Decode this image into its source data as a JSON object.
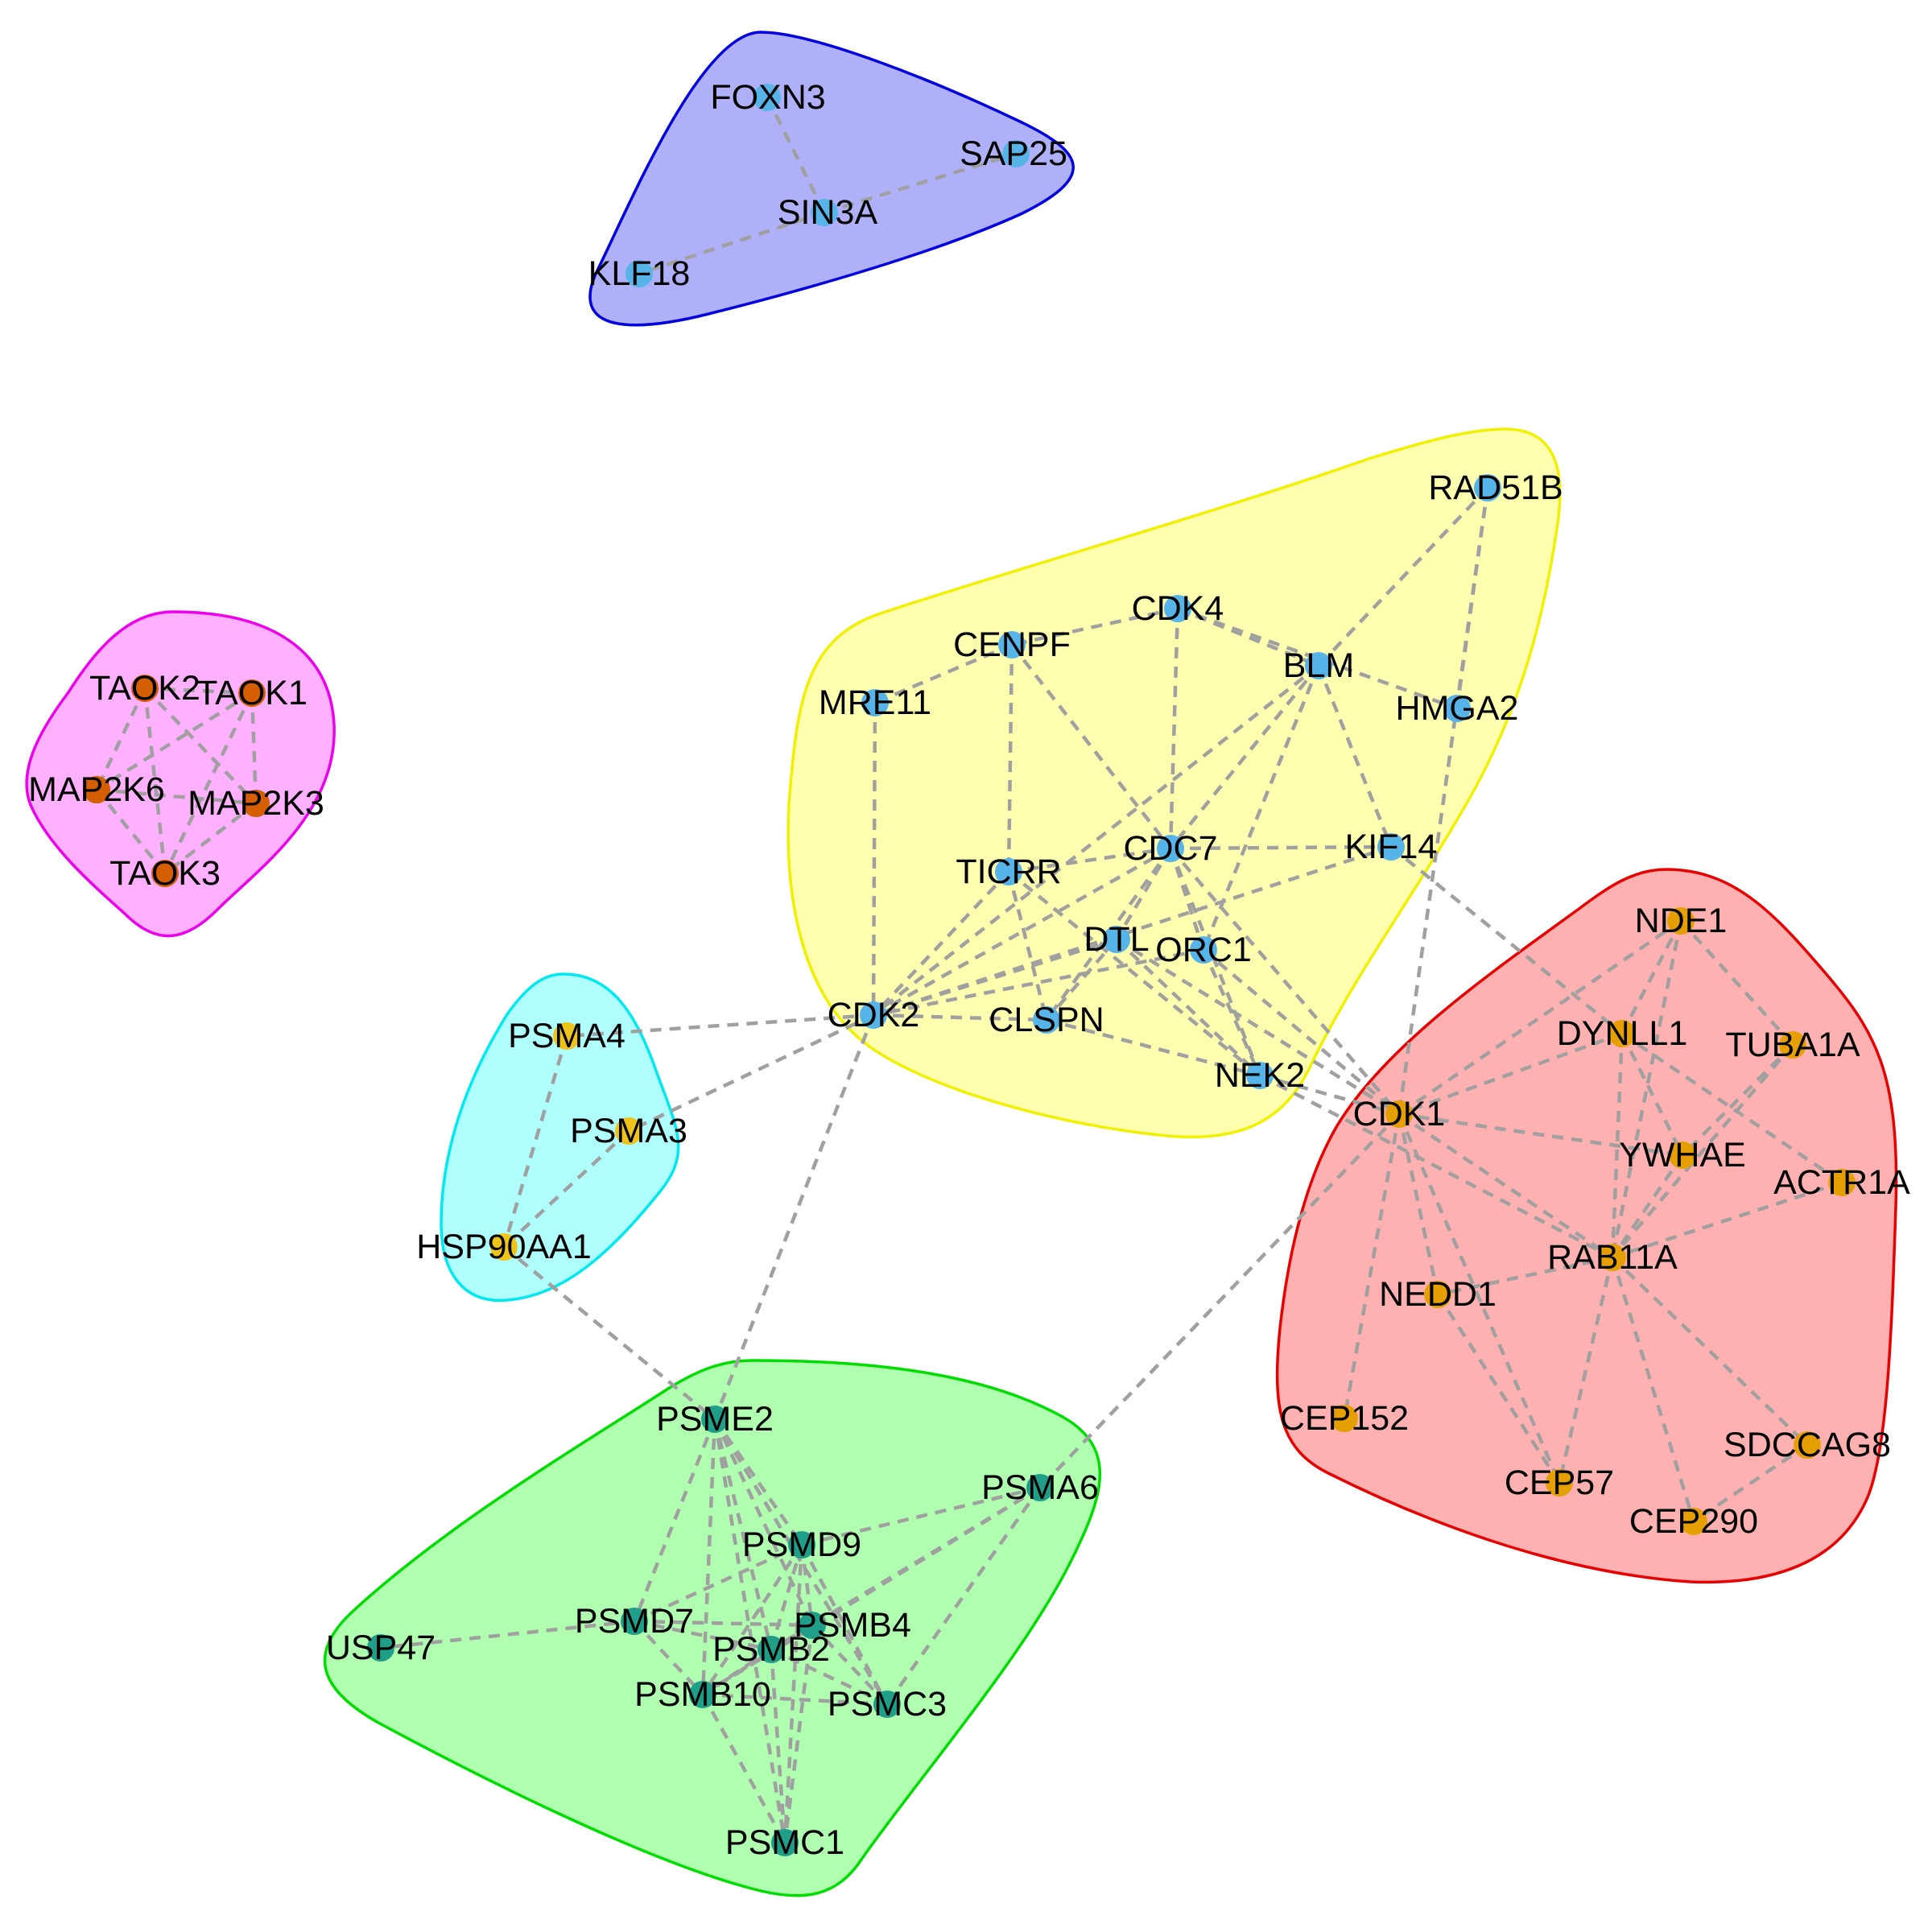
{
  "colors": {
    "edge": "#a0a0a0",
    "node_blue": "#56b4e9",
    "node_orange": "#e69f00",
    "node_gold": "#eec31c",
    "node_teal": "#1f9e89",
    "node_dark_orange": "#d55e00"
  },
  "clusters": [
    {
      "id": "blue",
      "fill": "#b0b0f8",
      "stroke": "#0000e0"
    },
    {
      "id": "magenta",
      "fill": "#ffb0ff",
      "stroke": "#ee00ee"
    },
    {
      "id": "yellow",
      "fill": "#ffffb0",
      "stroke": "#f0f000"
    },
    {
      "id": "cyan",
      "fill": "#b0ffff",
      "stroke": "#00e8f0"
    },
    {
      "id": "red",
      "fill": "#ffb0b0",
      "stroke": "#e80000"
    },
    {
      "id": "green",
      "fill": "#b0ffb0",
      "stroke": "#00dd00"
    }
  ],
  "nodes": [
    {
      "id": "FOXN3",
      "label": "FOXN3",
      "cluster": "blue",
      "color": "#56b4e9"
    },
    {
      "id": "SAP25",
      "label": "SAP25",
      "cluster": "blue",
      "color": "#56b4e9"
    },
    {
      "id": "SIN3A",
      "label": "SIN3A",
      "cluster": "blue",
      "color": "#56b4e9"
    },
    {
      "id": "KLF18",
      "label": "KLF18",
      "cluster": "blue",
      "color": "#56b4e9"
    },
    {
      "id": "TAOK2",
      "label": "TAOK2",
      "cluster": "magenta",
      "color": "#d55e00"
    },
    {
      "id": "TAOK1",
      "label": "TAOK1",
      "cluster": "magenta",
      "color": "#d55e00"
    },
    {
      "id": "MAP2K6",
      "label": "MAP2K6",
      "cluster": "magenta",
      "color": "#d55e00"
    },
    {
      "id": "MAP2K3",
      "label": "MAP2K3",
      "cluster": "magenta",
      "color": "#d55e00"
    },
    {
      "id": "TAOK3",
      "label": "TAOK3",
      "cluster": "magenta",
      "color": "#d55e00"
    },
    {
      "id": "RAD51B",
      "label": "RAD51B",
      "cluster": "yellow",
      "color": "#56b4e9"
    },
    {
      "id": "CDK4",
      "label": "CDK4",
      "cluster": "yellow",
      "color": "#56b4e9"
    },
    {
      "id": "CENPF",
      "label": "CENPF",
      "cluster": "yellow",
      "color": "#56b4e9"
    },
    {
      "id": "BLM",
      "label": "BLM",
      "cluster": "yellow",
      "color": "#56b4e9"
    },
    {
      "id": "MRE11",
      "label": "MRE11",
      "cluster": "yellow",
      "color": "#56b4e9"
    },
    {
      "id": "HMGA2",
      "label": "HMGA2",
      "cluster": "yellow",
      "color": "#56b4e9"
    },
    {
      "id": "TICRR",
      "label": "TICRR",
      "cluster": "yellow",
      "color": "#56b4e9"
    },
    {
      "id": "CDC7",
      "label": "CDC7",
      "cluster": "yellow",
      "color": "#56b4e9"
    },
    {
      "id": "KIF14",
      "label": "KIF14",
      "cluster": "yellow",
      "color": "#56b4e9"
    },
    {
      "id": "DTL",
      "label": "DTL",
      "cluster": "yellow",
      "color": "#56b4e9"
    },
    {
      "id": "ORC1",
      "label": "ORC1",
      "cluster": "yellow",
      "color": "#56b4e9"
    },
    {
      "id": "CDK2",
      "label": "CDK2",
      "cluster": "yellow",
      "color": "#56b4e9"
    },
    {
      "id": "CLSPN",
      "label": "CLSPN",
      "cluster": "yellow",
      "color": "#56b4e9"
    },
    {
      "id": "NEK2",
      "label": "NEK2",
      "cluster": "yellow",
      "color": "#56b4e9"
    },
    {
      "id": "PSMA4",
      "label": "PSMA4",
      "cluster": "cyan",
      "color": "#eec31c"
    },
    {
      "id": "PSMA3",
      "label": "PSMA3",
      "cluster": "cyan",
      "color": "#eec31c"
    },
    {
      "id": "HSP90AA1",
      "label": "HSP90AA1",
      "cluster": "cyan",
      "color": "#eec31c"
    },
    {
      "id": "NDE1",
      "label": "NDE1",
      "cluster": "red",
      "color": "#e69f00"
    },
    {
      "id": "DYNLL1",
      "label": "DYNLL1",
      "cluster": "red",
      "color": "#e69f00"
    },
    {
      "id": "TUBA1A",
      "label": "TUBA1A",
      "cluster": "red",
      "color": "#e69f00"
    },
    {
      "id": "CDK1",
      "label": "CDK1",
      "cluster": "red",
      "color": "#e69f00"
    },
    {
      "id": "YWHAE",
      "label": "YWHAE",
      "cluster": "red",
      "color": "#e69f00"
    },
    {
      "id": "ACTR1A",
      "label": "ACTR1A",
      "cluster": "red",
      "color": "#e69f00"
    },
    {
      "id": "RAB11A",
      "label": "RAB11A",
      "cluster": "red",
      "color": "#e69f00"
    },
    {
      "id": "NEDD1",
      "label": "NEDD1",
      "cluster": "red",
      "color": "#e69f00"
    },
    {
      "id": "CEP152",
      "label": "CEP152",
      "cluster": "red",
      "color": "#e69f00"
    },
    {
      "id": "SDCCAG8",
      "label": "SDCCAG8",
      "cluster": "red",
      "color": "#e69f00"
    },
    {
      "id": "CEP57",
      "label": "CEP57",
      "cluster": "red",
      "color": "#e69f00"
    },
    {
      "id": "CEP290",
      "label": "CEP290",
      "cluster": "red",
      "color": "#e69f00"
    },
    {
      "id": "PSME2",
      "label": "PSME2",
      "cluster": "green",
      "color": "#1f9e89"
    },
    {
      "id": "PSMA6",
      "label": "PSMA6",
      "cluster": "green",
      "color": "#1f9e89"
    },
    {
      "id": "PSMD9",
      "label": "PSMD9",
      "cluster": "green",
      "color": "#1f9e89"
    },
    {
      "id": "PSMD7",
      "label": "PSMD7",
      "cluster": "green",
      "color": "#1f9e89"
    },
    {
      "id": "PSMB4",
      "label": "PSMB4",
      "cluster": "green",
      "color": "#1f9e89"
    },
    {
      "id": "USP47",
      "label": "USP47",
      "cluster": "green",
      "color": "#1f9e89"
    },
    {
      "id": "PSMB2",
      "label": "PSMB2",
      "cluster": "green",
      "color": "#1f9e89"
    },
    {
      "id": "PSMB10",
      "label": "PSMB10",
      "cluster": "green",
      "color": "#1f9e89"
    },
    {
      "id": "PSMC3",
      "label": "PSMC3",
      "cluster": "green",
      "color": "#1f9e89"
    },
    {
      "id": "PSMC1",
      "label": "PSMC1",
      "cluster": "green",
      "color": "#1f9e89"
    }
  ],
  "edges": [
    [
      "FOXN3",
      "SIN3A"
    ],
    [
      "SIN3A",
      "SAP25"
    ],
    [
      "SIN3A",
      "KLF18"
    ],
    [
      "TAOK2",
      "TAOK1"
    ],
    [
      "TAOK2",
      "MAP2K6"
    ],
    [
      "TAOK2",
      "MAP2K3"
    ],
    [
      "TAOK2",
      "TAOK3"
    ],
    [
      "TAOK1",
      "MAP2K6"
    ],
    [
      "TAOK1",
      "MAP2K3"
    ],
    [
      "TAOK1",
      "TAOK3"
    ],
    [
      "MAP2K6",
      "TAOK3"
    ],
    [
      "MAP2K6",
      "MAP2K3"
    ],
    [
      "MAP2K3",
      "TAOK3"
    ],
    [
      "RAD51B",
      "BLM"
    ],
    [
      "RAD51B",
      "HMGA2"
    ],
    [
      "RAD51B",
      "CDK1"
    ],
    [
      "CDK4",
      "CENPF"
    ],
    [
      "CDK4",
      "BLM"
    ],
    [
      "CDK4",
      "HMGA2"
    ],
    [
      "CDK4",
      "CDC7"
    ],
    [
      "CENPF",
      "MRE11"
    ],
    [
      "CENPF",
      "TICRR"
    ],
    [
      "CENPF",
      "CDC7"
    ],
    [
      "BLM",
      "CDC7"
    ],
    [
      "BLM",
      "KIF14"
    ],
    [
      "BLM",
      "ORC1"
    ],
    [
      "BLM",
      "CDK2"
    ],
    [
      "MRE11",
      "CDK2"
    ],
    [
      "TICRR",
      "CDC7"
    ],
    [
      "TICRR",
      "CDK2"
    ],
    [
      "TICRR",
      "CLSPN"
    ],
    [
      "TICRR",
      "NEK2"
    ],
    [
      "CDC7",
      "KIF14"
    ],
    [
      "CDC7",
      "CDK2"
    ],
    [
      "CDC7",
      "DTL"
    ],
    [
      "CDC7",
      "ORC1"
    ],
    [
      "CDC7",
      "CLSPN"
    ],
    [
      "CDC7",
      "NEK2"
    ],
    [
      "CDC7",
      "CDK1"
    ],
    [
      "KIF14",
      "CDK2"
    ],
    [
      "KIF14",
      "DYNLL1"
    ],
    [
      "DTL",
      "CDK2"
    ],
    [
      "DTL",
      "CLSPN"
    ],
    [
      "DTL",
      "NEK2"
    ],
    [
      "DTL",
      "CDK1"
    ],
    [
      "ORC1",
      "CDK2"
    ],
    [
      "ORC1",
      "NEK2"
    ],
    [
      "ORC1",
      "CDK1"
    ],
    [
      "CDK2",
      "CLSPN"
    ],
    [
      "CDK2",
      "PSMA4"
    ],
    [
      "CDK2",
      "PSMA3"
    ],
    [
      "CDK2",
      "PSME2"
    ],
    [
      "CLSPN",
      "NEK2"
    ],
    [
      "NEK2",
      "CDK1"
    ],
    [
      "NEK2",
      "RAB11A"
    ],
    [
      "PSMA4",
      "HSP90AA1"
    ],
    [
      "PSMA3",
      "HSP90AA1"
    ],
    [
      "HSP90AA1",
      "PSME2"
    ],
    [
      "NDE1",
      "DYNLL1"
    ],
    [
      "NDE1",
      "CDK1"
    ],
    [
      "NDE1",
      "TUBA1A"
    ],
    [
      "NDE1",
      "RAB11A"
    ],
    [
      "DYNLL1",
      "CDK1"
    ],
    [
      "DYNLL1",
      "ACTR1A"
    ],
    [
      "DYNLL1",
      "RAB11A"
    ],
    [
      "DYNLL1",
      "YWHAE"
    ],
    [
      "TUBA1A",
      "YWHAE"
    ],
    [
      "TUBA1A",
      "RAB11A"
    ],
    [
      "CDK1",
      "YWHAE"
    ],
    [
      "CDK1",
      "RAB11A"
    ],
    [
      "CDK1",
      "NEDD1"
    ],
    [
      "CDK1",
      "CEP152"
    ],
    [
      "CDK1",
      "PSMA6"
    ],
    [
      "CDK1",
      "CEP57"
    ],
    [
      "YWHAE",
      "RAB11A"
    ],
    [
      "ACTR1A",
      "RAB11A"
    ],
    [
      "RAB11A",
      "NEDD1"
    ],
    [
      "RAB11A",
      "SDCCAG8"
    ],
    [
      "RAB11A",
      "CEP57"
    ],
    [
      "RAB11A",
      "CEP290"
    ],
    [
      "NEDD1",
      "CEP57"
    ],
    [
      "SDCCAG8",
      "CEP290"
    ],
    [
      "PSME2",
      "PSMD9"
    ],
    [
      "PSME2",
      "PSMD7"
    ],
    [
      "PSME2",
      "PSMB4"
    ],
    [
      "PSME2",
      "PSMB2"
    ],
    [
      "PSME2",
      "PSMB10"
    ],
    [
      "PSME2",
      "PSMC3"
    ],
    [
      "PSME2",
      "PSMC1"
    ],
    [
      "PSMA6",
      "PSMD9"
    ],
    [
      "PSMA6",
      "PSMB4"
    ],
    [
      "PSMA6",
      "PSMB2"
    ],
    [
      "PSMA6",
      "PSMC3"
    ],
    [
      "PSMA6",
      "PSMB10"
    ],
    [
      "PSMD9",
      "PSMD7"
    ],
    [
      "PSMD9",
      "PSMB4"
    ],
    [
      "PSMD9",
      "PSMB2"
    ],
    [
      "PSMD9",
      "PSMB10"
    ],
    [
      "PSMD9",
      "PSMC3"
    ],
    [
      "PSMD9",
      "PSMC1"
    ],
    [
      "PSMD7",
      "USP47"
    ],
    [
      "PSMD7",
      "PSMB4"
    ],
    [
      "PSMD7",
      "PSMB2"
    ],
    [
      "PSMD7",
      "PSMB10"
    ],
    [
      "PSMB4",
      "PSMB2"
    ],
    [
      "PSMB4",
      "PSMB10"
    ],
    [
      "PSMB4",
      "PSMC3"
    ],
    [
      "PSMB4",
      "PSMC1"
    ],
    [
      "PSMB2",
      "PSMB10"
    ],
    [
      "PSMB2",
      "PSMC3"
    ],
    [
      "PSMB2",
      "PSMC1"
    ],
    [
      "PSMB10",
      "PSMC3"
    ],
    [
      "PSMB10",
      "PSMC1"
    ]
  ]
}
